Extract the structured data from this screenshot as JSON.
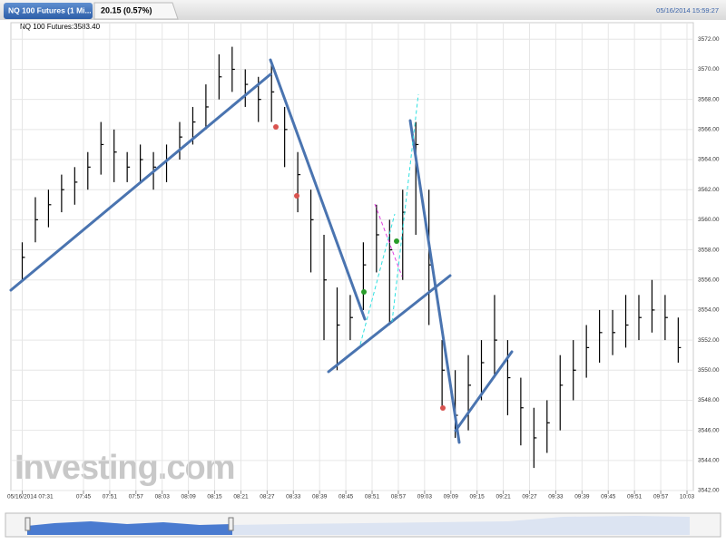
{
  "header": {
    "tab": "NQ 100 Futures (1 Mi...",
    "change": "20.15 (0.57%)",
    "timestamp": "05/16/2014 15:59:27"
  },
  "chart_data": {
    "type": "ohlc",
    "legend": "NQ 100 Futures:3583.40",
    "watermark": "Investing.com",
    "color": "#000000",
    "grid": true,
    "x": [
      "07:31",
      "07:34",
      "07:37",
      "07:40",
      "07:43",
      "07:46",
      "07:49",
      "07:52",
      "07:55",
      "07:58",
      "08:01",
      "08:04",
      "08:07",
      "08:10",
      "08:13",
      "08:16",
      "08:19",
      "08:22",
      "08:25",
      "08:28",
      "08:31",
      "08:34",
      "08:37",
      "08:40",
      "08:43",
      "08:46",
      "08:49",
      "08:52",
      "08:55",
      "08:58",
      "09:01",
      "09:04",
      "09:07",
      "09:10",
      "09:13",
      "09:16",
      "09:19",
      "09:22",
      "09:25",
      "09:28",
      "09:31",
      "09:34",
      "09:37",
      "09:40",
      "09:43",
      "09:46",
      "09:49",
      "09:52",
      "09:55",
      "09:58",
      "10:01"
    ],
    "high": [
      3558.5,
      3561.5,
      3562,
      3563,
      3563.5,
      3564.5,
      3566.5,
      3566,
      3564.5,
      3565,
      3564.5,
      3565,
      3566.5,
      3567.5,
      3569,
      3571,
      3571.5,
      3570,
      3569.5,
      3570.5,
      3567.5,
      3564.5,
      3562,
      3559,
      3555.5,
      3555,
      3558.5,
      3561,
      3560,
      3562,
      3566.5,
      3562,
      3552,
      3550,
      3551,
      3552,
      3555,
      3552,
      3549.5,
      3547.5,
      3548,
      3551,
      3552,
      3553,
      3554,
      3554,
      3555,
      3555,
      3556,
      3555,
      3553.5
    ],
    "low": [
      3556,
      3558.5,
      3559.5,
      3560.5,
      3561,
      3562,
      3563,
      3562.5,
      3562.5,
      3562.5,
      3562,
      3562.5,
      3564,
      3565,
      3566,
      3568,
      3568.5,
      3567.5,
      3566.5,
      3566.5,
      3563.5,
      3560.5,
      3556.5,
      3552,
      3550,
      3552,
      3554,
      3556.5,
      3553,
      3556,
      3559,
      3553,
      3547.5,
      3545.5,
      3546,
      3548,
      3549.5,
      3547,
      3545,
      3543.5,
      3544.5,
      3546,
      3548,
      3549.5,
      3550.5,
      3551,
      3551.5,
      3552,
      3552.5,
      3552,
      3550.5
    ],
    "close": [
      3557.5,
      3560,
      3561,
      3562,
      3562.5,
      3563.5,
      3565,
      3564.5,
      3563.5,
      3564,
      3563.5,
      3564,
      3565.5,
      3566.5,
      3567.5,
      3569.5,
      3570,
      3569,
      3568,
      3568.5,
      3566,
      3563,
      3560,
      3556,
      3553,
      3553.5,
      3557,
      3559,
      3558,
      3560.5,
      3565,
      3557,
      3550,
      3547,
      3549,
      3550.5,
      3552,
      3549.5,
      3547.5,
      3545.5,
      3546.5,
      3549,
      3550,
      3551.5,
      3552.5,
      3552.5,
      3553,
      3553.5,
      3554,
      3553.5,
      3551.5
    ],
    "xlim": [
      "07:31",
      "10:03"
    ],
    "xticks": [
      "05/16/2014 07:31",
      "07:45",
      "07:51",
      "07:57",
      "08:03",
      "08:09",
      "08:15",
      "08:21",
      "08:27",
      "08:33",
      "08:39",
      "08:45",
      "08:51",
      "08:57",
      "09:03",
      "09:09",
      "09:15",
      "09:21",
      "09:27",
      "09:33",
      "09:39",
      "09:45",
      "09:51",
      "09:57",
      "10:03"
    ],
    "ylim": [
      3542,
      3572.5
    ],
    "yticks": [
      {
        "value": 3542,
        "label": "3542.00"
      },
      {
        "value": 3544,
        "label": "3544.00"
      },
      {
        "value": 3546,
        "label": "3546.00"
      },
      {
        "value": 3548,
        "label": "3548.00"
      },
      {
        "value": 3550,
        "label": "3550.00"
      },
      {
        "value": 3552,
        "label": "3552.00"
      },
      {
        "value": 3554,
        "label": "3554.00"
      },
      {
        "value": 3556,
        "label": "3556.00"
      },
      {
        "value": 3558,
        "label": "3558.00"
      },
      {
        "value": 3560,
        "label": "3560.00"
      },
      {
        "value": 3562,
        "label": "3562.00"
      },
      {
        "value": 3564,
        "label": "3564.00"
      },
      {
        "value": 3566,
        "label": "3566.00"
      },
      {
        "value": 3568,
        "label": "3568.00"
      },
      {
        "value": 3570,
        "label": "3570.00"
      },
      {
        "value": 3572,
        "label": "3572.00"
      }
    ]
  }
}
